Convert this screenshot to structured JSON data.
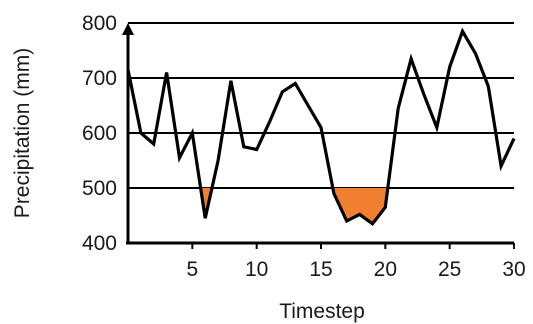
{
  "chart_data": {
    "type": "line",
    "xlabel": "Timestep",
    "ylabel": "Precipitation (mm)",
    "xlim": [
      0,
      30
    ],
    "ylim": [
      400,
      800
    ],
    "x_ticks": [
      "5",
      "10",
      "15",
      "20",
      "25",
      "30"
    ],
    "y_ticks": [
      "400",
      "500",
      "600",
      "700",
      "800"
    ],
    "grid": "horizontal",
    "threshold": 500,
    "series": [
      {
        "x": [
          0,
          1,
          2,
          3,
          4,
          5,
          6,
          7,
          8,
          9,
          10,
          11,
          12,
          13,
          14,
          15,
          16,
          17,
          18,
          19,
          20,
          21,
          22,
          23,
          24,
          25,
          26,
          27,
          28,
          29,
          30
        ],
        "values": [
          715,
          600,
          580,
          710,
          555,
          600,
          445,
          550,
          695,
          575,
          570,
          620,
          675,
          690,
          650,
          610,
          490,
          440,
          452,
          435,
          465,
          645,
          735,
          670,
          610,
          720,
          785,
          745,
          685,
          540,
          590
        ]
      }
    ],
    "colors": {
      "line": "#000000",
      "fill": "#f07f2f",
      "grid": "#000000"
    }
  }
}
